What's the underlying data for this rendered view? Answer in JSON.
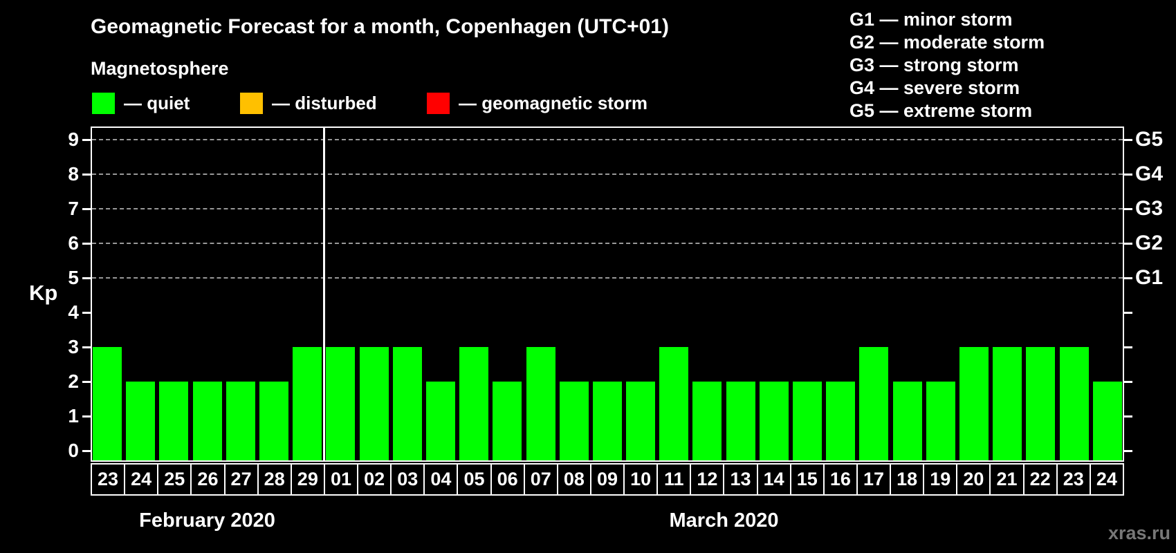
{
  "header": {
    "title": "Geomagnetic Forecast for a month, Copenhagen (UTC+01)",
    "subtitle": "Magnetosphere"
  },
  "legend": {
    "items": [
      {
        "name": "quiet",
        "label": "— quiet",
        "color": "#00ff00"
      },
      {
        "name": "disturbed",
        "label": "— disturbed",
        "color": "#ffc000"
      },
      {
        "name": "geomagnetic-storm",
        "label": "— geomagnetic storm",
        "color": "#ff0000"
      }
    ]
  },
  "g_scale_legend": {
    "lines": [
      "G1 — minor storm",
      "G2 — moderate storm",
      "G3 — strong storm",
      "G4 — severe storm",
      "G5 — extreme storm"
    ]
  },
  "watermark": "xras.ru",
  "chart_data": {
    "type": "bar",
    "title": "Geomagnetic Forecast for a month, Copenhagen (UTC+01)",
    "ylabel": "Kp",
    "ylim": [
      0,
      9
    ],
    "y_ticks": [
      0,
      1,
      2,
      3,
      4,
      5,
      6,
      7,
      8,
      9
    ],
    "grid": "horizontal dashed gridlines at Kp 5 through 9",
    "legend_position": "top",
    "right_axis_labels": [
      {
        "label": "G1",
        "kp": 5
      },
      {
        "label": "G2",
        "kp": 6
      },
      {
        "label": "G3",
        "kp": 7
      },
      {
        "label": "G4",
        "kp": 8
      },
      {
        "label": "G5",
        "kp": 9
      }
    ],
    "categories": [
      "23",
      "24",
      "25",
      "26",
      "27",
      "28",
      "29",
      "01",
      "02",
      "03",
      "04",
      "05",
      "06",
      "07",
      "08",
      "09",
      "10",
      "11",
      "12",
      "13",
      "14",
      "15",
      "16",
      "17",
      "18",
      "19",
      "20",
      "21",
      "22",
      "23",
      "24"
    ],
    "values": [
      3,
      2,
      2,
      2,
      2,
      2,
      3,
      3,
      3,
      3,
      2,
      3,
      2,
      3,
      2,
      2,
      2,
      3,
      2,
      2,
      2,
      2,
      2,
      3,
      2,
      2,
      3,
      3,
      3,
      3,
      2
    ],
    "groups": [
      {
        "label": "February 2020",
        "key": "feb",
        "count": 7
      },
      {
        "label": "March 2020",
        "key": "mar",
        "count": 24
      }
    ],
    "bar_colors": {
      "quiet": "#00ff00",
      "disturbed": "#ffc000",
      "storm": "#ff0000"
    }
  },
  "colors": {
    "background": "#000000",
    "axis": "#ffffff",
    "gridline": "#999999",
    "text": "#ffffff",
    "watermark": "#777777"
  }
}
